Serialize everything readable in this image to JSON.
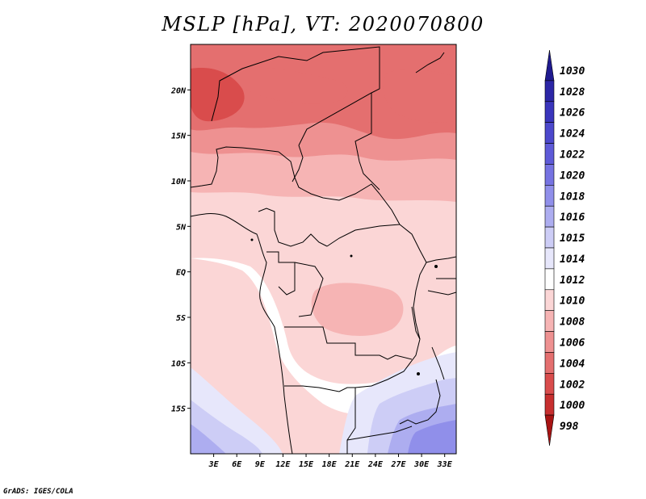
{
  "title": "MSLP [hPa], VT: 2020070800",
  "credit": "GrADS: IGES/COLA",
  "map": {
    "lon_range": [
      0,
      34.5
    ],
    "lat_range": [
      -20,
      25
    ],
    "lon_ticks": [
      {
        "value": 3,
        "label": "3E"
      },
      {
        "value": 6,
        "label": "6E"
      },
      {
        "value": 9,
        "label": "9E"
      },
      {
        "value": 12,
        "label": "12E"
      },
      {
        "value": 15,
        "label": "15E"
      },
      {
        "value": 18,
        "label": "18E"
      },
      {
        "value": 21,
        "label": "21E"
      },
      {
        "value": 24,
        "label": "24E"
      },
      {
        "value": 27,
        "label": "27E"
      },
      {
        "value": 30,
        "label": "30E"
      },
      {
        "value": 33,
        "label": "33E"
      }
    ],
    "lat_ticks": [
      {
        "value": 20,
        "label": "20N"
      },
      {
        "value": 15,
        "label": "15N"
      },
      {
        "value": 10,
        "label": "10N"
      },
      {
        "value": 5,
        "label": "5N"
      },
      {
        "value": 0,
        "label": "EQ"
      },
      {
        "value": -5,
        "label": "5S"
      },
      {
        "value": -10,
        "label": "10S"
      },
      {
        "value": -15,
        "label": "15S"
      }
    ]
  },
  "colorbar": {
    "levels": [
      "1030",
      "1028",
      "1026",
      "1024",
      "1022",
      "1020",
      "1018",
      "1016",
      "1015",
      "1014",
      "1012",
      "1010",
      "1008",
      "1006",
      "1004",
      "1002",
      "1000",
      "998"
    ],
    "colors": [
      "#1f1a8f",
      "#2c26a6",
      "#3a35bc",
      "#4c48cc",
      "#5e5ad8",
      "#7673e2",
      "#908fea",
      "#adadf0",
      "#cdcdf6",
      "#e7e7fb",
      "#ffffff",
      "#fbd6d6",
      "#f6b4b4",
      "#ee9191",
      "#e46f6f",
      "#d94c4c",
      "#c72f2f",
      "#a81414"
    ]
  }
}
